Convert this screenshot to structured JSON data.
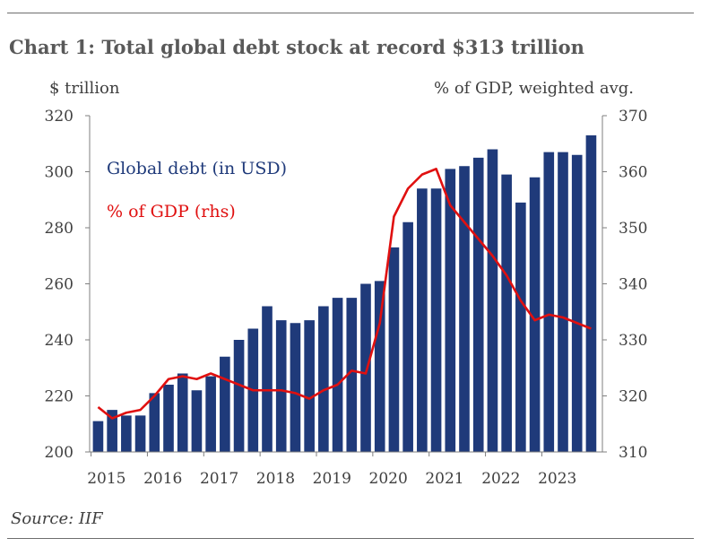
{
  "chart_data": {
    "type": "bar",
    "title": "Chart 1: Total global debt stock at record $313 trillion",
    "source": "Source: IIF",
    "y_left_label": "$ trillion",
    "y_right_label": "% of GDP, weighted avg.",
    "ylim_left": [
      200,
      320
    ],
    "ylim_right": [
      310,
      370
    ],
    "yticks_left": [
      "200",
      "220",
      "240",
      "260",
      "280",
      "300",
      "320"
    ],
    "yticks_right": [
      "310",
      "320",
      "330",
      "340",
      "350",
      "360",
      "370"
    ],
    "xticks": [
      "2015",
      "2016",
      "2017",
      "2018",
      "2019",
      "2020",
      "2021",
      "2022",
      "2023"
    ],
    "first_year": 2015,
    "colors": {
      "bars": "#1f3a7a",
      "line": "#e01010",
      "axis": "#7f7f7f"
    },
    "series": [
      {
        "name": "Global debt (in USD)",
        "axis": "left",
        "values": [
          211,
          215,
          213,
          213,
          221,
          224,
          228,
          222,
          227,
          234,
          240,
          244,
          252,
          247,
          246,
          247,
          252,
          255,
          255,
          260,
          261,
          273,
          282,
          294,
          294,
          301,
          302,
          305,
          308,
          299,
          289,
          298,
          307,
          307,
          306,
          313
        ]
      },
      {
        "name": "% of GDP (rhs)",
        "axis": "right",
        "values": [
          318,
          316,
          317,
          317.5,
          320,
          323,
          323.5,
          323,
          324,
          323,
          322,
          321,
          321,
          321,
          320.5,
          319.5,
          321,
          322,
          324.5,
          324,
          333,
          352,
          357,
          359.5,
          360.5,
          354,
          351,
          348,
          345,
          341.5,
          337,
          333.5,
          334.5,
          334,
          333,
          332
        ]
      }
    ]
  }
}
